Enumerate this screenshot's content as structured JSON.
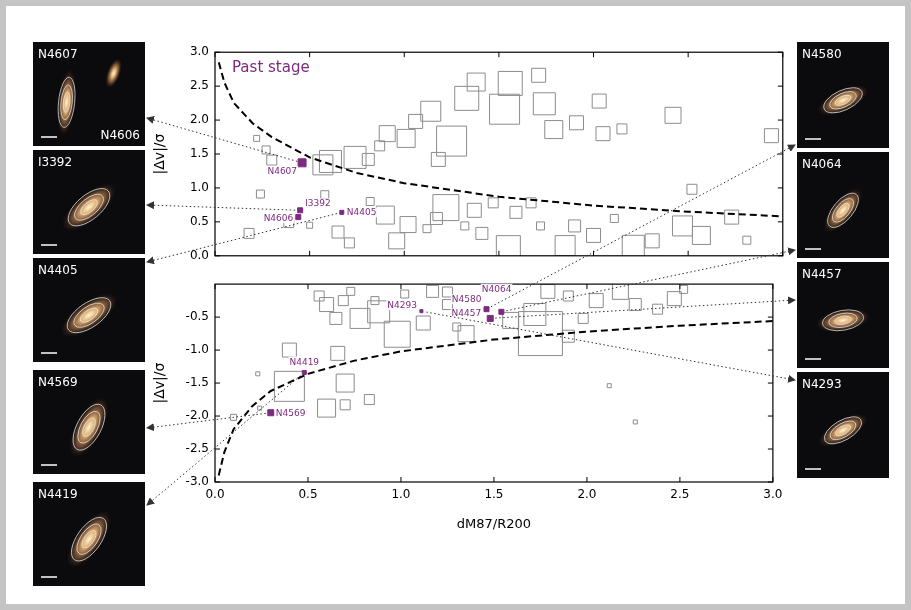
{
  "chart_data": [
    {
      "type": "scatter",
      "annotation": "Past stage",
      "y_label": "|Δv|/σ",
      "xlim": [
        0,
        3
      ],
      "xticks": [
        {
          "value": 0,
          "label": "0.0"
        },
        0.5,
        {
          "value": 1,
          "label": "1.0"
        },
        1.5,
        {
          "value": 2,
          "label": "2.0"
        },
        2.5,
        {
          "value": 3,
          "label": "3.0"
        }
      ],
      "ylim": [
        0,
        3
      ],
      "yticks": [
        {
          "value": 0,
          "label": "0.0"
        },
        0.5,
        {
          "value": 1,
          "label": "1.0"
        },
        1.5,
        {
          "value": 2,
          "label": "2.0"
        },
        2.5,
        {
          "value": 3,
          "label": "3.0"
        }
      ],
      "grid": false,
      "tick_labels": "y",
      "points": {
        "x": [
          0.22,
          0.27,
          0.3,
          0.57,
          0.61,
          0.74,
          0.81,
          0.87,
          0.91,
          1.01,
          1.06,
          1.14,
          1.18,
          1.25,
          1.33,
          1.38,
          1.53,
          1.56,
          1.71,
          1.74,
          1.79,
          1.91,
          2.03,
          2.05,
          2.42,
          2.15,
          2.94,
          0.18,
          0.24,
          0.39,
          0.5,
          0.58,
          0.65,
          0.71,
          0.82,
          0.9,
          0.96,
          1.02,
          1.12,
          1.17,
          1.22,
          1.32,
          1.37,
          1.41,
          1.47,
          1.59,
          1.67,
          1.72,
          1.9,
          2.0,
          2.11,
          2.21,
          2.31,
          2.47,
          2.57,
          2.73,
          2.81,
          2.52,
          1.55,
          1.85
        ],
        "values": [
          1.73,
          1.56,
          1.41,
          1.34,
          1.39,
          1.45,
          1.42,
          1.62,
          1.8,
          1.73,
          1.98,
          2.13,
          1.42,
          1.69,
          2.32,
          2.56,
          2.16,
          2.54,
          2.66,
          2.24,
          1.86,
          1.96,
          2.28,
          1.8,
          2.07,
          1.87,
          1.77,
          0.33,
          0.91,
          0.49,
          0.45,
          0.9,
          0.35,
          0.19,
          0.8,
          0.6,
          0.22,
          0.46,
          0.4,
          0.55,
          0.71,
          0.44,
          0.67,
          0.33,
          0.78,
          0.64,
          0.78,
          0.44,
          0.44,
          0.3,
          0.55,
          0.14,
          0.22,
          0.44,
          0.3,
          0.57,
          0.23,
          0.98,
          0.12,
          0.15
        ],
        "sizes": [
          6,
          8,
          10,
          20,
          22,
          22,
          12,
          10,
          16,
          18,
          14,
          20,
          14,
          30,
          24,
          18,
          30,
          24,
          14,
          22,
          18,
          14,
          14,
          14,
          16,
          10,
          14,
          10,
          8,
          10,
          6,
          8,
          12,
          10,
          8,
          18,
          16,
          16,
          8,
          12,
          26,
          8,
          14,
          12,
          10,
          12,
          10,
          8,
          12,
          14,
          8,
          22,
          14,
          20,
          18,
          14,
          8,
          10,
          24,
          20
        ],
        "color": "#8c8c8c",
        "marker": "square"
      },
      "highlighted": {
        "labels": [
          "N4607",
          "I3392",
          "N4606",
          "N4405"
        ],
        "x": [
          0.46,
          0.45,
          0.44,
          0.67
        ],
        "values": [
          1.37,
          0.67,
          0.57,
          0.64
        ],
        "sizes": [
          8,
          5,
          5,
          4
        ],
        "color": "#7d2a7f",
        "marker": "square"
      },
      "curve": {
        "x": [
          0.02,
          0.05,
          0.1,
          0.2,
          0.3,
          0.5,
          0.75,
          1.0,
          1.5,
          2.0,
          2.5,
          3.0
        ],
        "values": [
          2.85,
          2.55,
          2.25,
          1.95,
          1.75,
          1.45,
          1.22,
          1.07,
          0.87,
          0.74,
          0.65,
          0.58
        ],
        "color": "#000000",
        "line_style": "dashed"
      }
    },
    {
      "type": "scatter",
      "x_label": "dM87/R200",
      "y_label": "|Δv|/σ",
      "xlim": [
        0,
        3
      ],
      "xticks": [
        {
          "value": 0,
          "label": "0.0"
        },
        0.5,
        {
          "value": 1,
          "label": "1.0"
        },
        1.5,
        {
          "value": 2,
          "label": "2.0"
        },
        2.5,
        {
          "value": 3,
          "label": "3.0"
        }
      ],
      "ylim": [
        -3,
        0
      ],
      "yticks": [
        {
          "value": -3,
          "label": "-3.0"
        },
        -2.5,
        {
          "value": -2,
          "label": "-2.0"
        },
        -1.5,
        {
          "value": -1,
          "label": "-1.0"
        },
        -0.5
      ],
      "grid": false,
      "points": {
        "x": [
          0.56,
          0.6,
          0.65,
          0.69,
          0.73,
          0.78,
          0.86,
          0.88,
          0.98,
          1.12,
          1.02,
          1.17,
          1.25,
          1.3,
          1.25,
          1.35,
          1.75,
          1.59,
          1.72,
          1.79,
          1.9,
          1.98,
          2.05,
          2.18,
          2.26,
          2.38,
          2.47,
          2.52,
          1.9,
          0.4,
          0.4,
          0.66,
          0.7,
          0.23,
          0.24,
          0.6,
          0.7,
          0.1,
          2.26,
          2.12,
          0.83
        ],
        "values": [
          -0.18,
          -0.31,
          -0.52,
          -0.25,
          -0.11,
          -0.52,
          -0.25,
          -0.42,
          -0.76,
          -0.59,
          -0.15,
          -0.11,
          -0.31,
          -0.65,
          -0.12,
          -0.75,
          -0.75,
          -0.55,
          -0.46,
          -0.11,
          -0.18,
          -0.52,
          -0.25,
          -0.11,
          -0.31,
          -0.38,
          -0.22,
          -0.08,
          -0.79,
          -1.0,
          -1.55,
          -1.05,
          -1.5,
          -1.36,
          -1.88,
          -1.88,
          -1.83,
          -2.02,
          -2.09,
          -1.54,
          -1.75
        ],
        "sizes": [
          10,
          14,
          12,
          10,
          8,
          20,
          8,
          22,
          26,
          14,
          8,
          12,
          10,
          8,
          10,
          16,
          44,
          16,
          22,
          14,
          10,
          10,
          14,
          16,
          12,
          10,
          14,
          8,
          12,
          14,
          30,
          14,
          18,
          4,
          4,
          18,
          10,
          6,
          4,
          4,
          10
        ],
        "color": "#8c8c8c",
        "marker": "square"
      },
      "highlighted": {
        "labels": [
          "N4580",
          "N4293",
          "N4064",
          "N4457",
          "N4419",
          "N4569"
        ],
        "x": [
          1.46,
          1.11,
          1.54,
          1.48,
          0.48,
          0.3
        ],
        "values": [
          -0.38,
          -0.41,
          -0.42,
          -0.52,
          -1.34,
          -1.95
        ],
        "sizes": [
          5,
          3,
          5,
          6,
          4,
          6
        ],
        "color": "#7d2a7f",
        "marker": "square"
      },
      "curve": {
        "x": [
          0.02,
          0.05,
          0.1,
          0.2,
          0.3,
          0.5,
          0.75,
          1.0,
          1.5,
          2.0,
          2.5,
          3.0
        ],
        "values": [
          -2.9,
          -2.55,
          -2.2,
          -1.85,
          -1.62,
          -1.36,
          -1.16,
          -1.02,
          -0.84,
          -0.72,
          -0.63,
          -0.56
        ],
        "color": "#000000",
        "line_style": "dashed"
      }
    }
  ],
  "thumbnails": {
    "left": [
      {
        "label": "N4607",
        "second_label": "N4606"
      },
      {
        "label": "I3392"
      },
      {
        "label": "N4405"
      },
      {
        "label": "N4569"
      },
      {
        "label": "N4419"
      }
    ],
    "right": [
      {
        "label": "N4580"
      },
      {
        "label": "N4064"
      },
      {
        "label": "N4457"
      },
      {
        "label": "N4293"
      }
    ]
  }
}
